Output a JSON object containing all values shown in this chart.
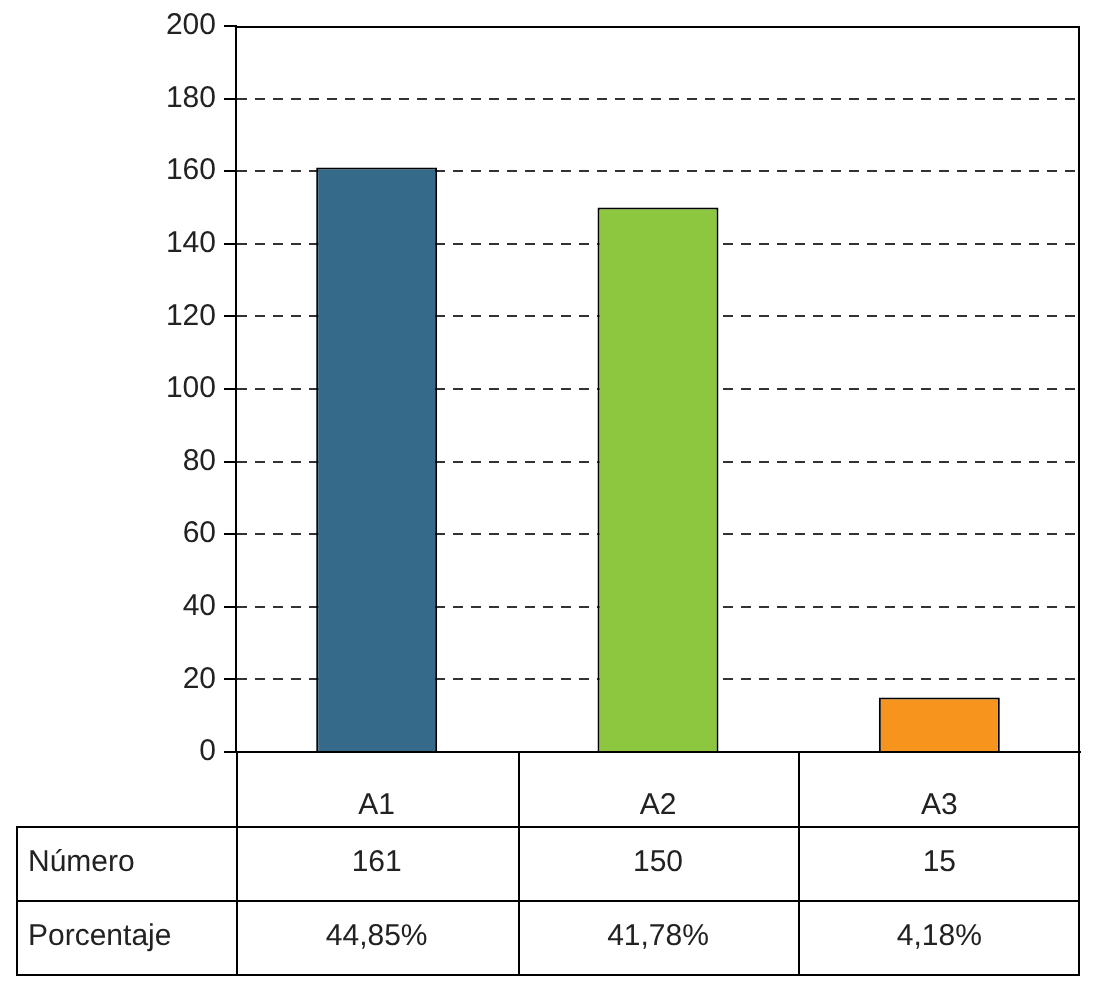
{
  "chart_data": {
    "type": "bar",
    "categories": [
      "A1",
      "A2",
      "A3"
    ],
    "values": [
      161,
      150,
      15
    ],
    "colors": [
      "#356a8a",
      "#8dc63f",
      "#f7941d"
    ],
    "ylim": [
      0,
      200
    ],
    "yticks": [
      0,
      20,
      40,
      60,
      80,
      100,
      120,
      140,
      160,
      180,
      200
    ],
    "grid": "y",
    "legend": false,
    "data_labels": true,
    "annotations": [
      "Número",
      "Porcentaje",
      "44,85%",
      "41,78%",
      "4,18%"
    ]
  }
}
